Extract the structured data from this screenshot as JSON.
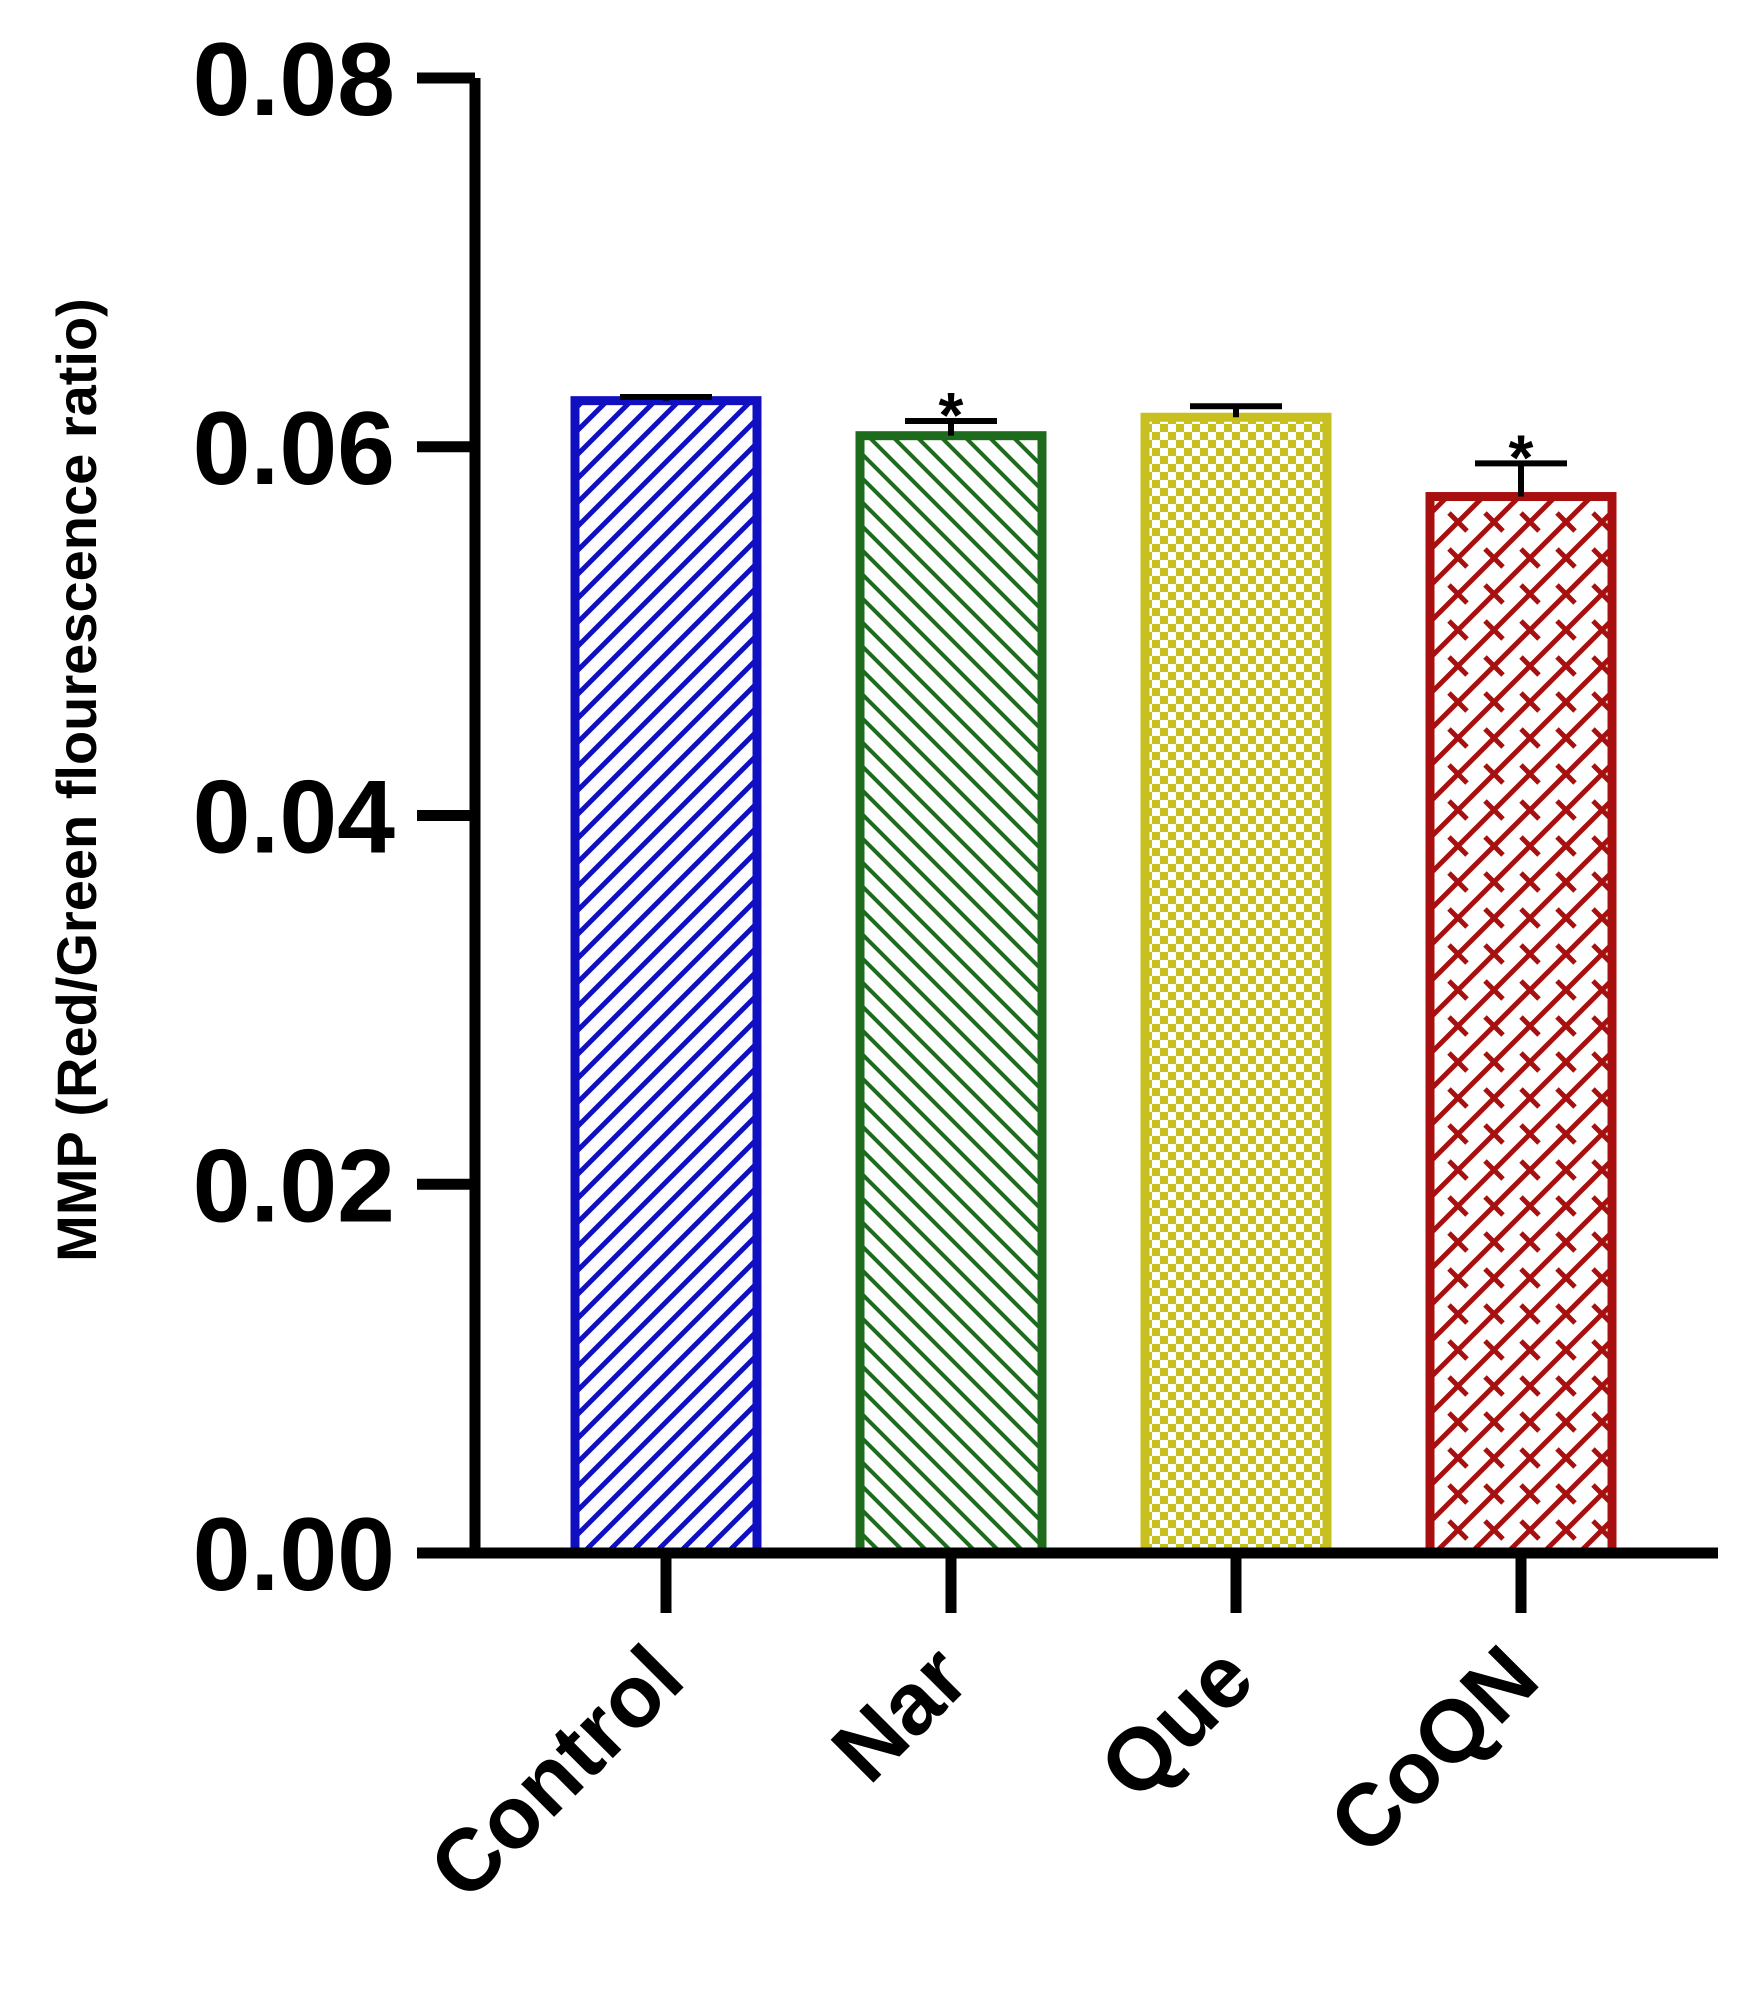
{
  "chart_data": {
    "type": "bar",
    "title": "",
    "xlabel": "",
    "ylabel": "MMP (Red/Green flourescence ratio)",
    "ylim": [
      0,
      0.08
    ],
    "yticks": [
      "0.00",
      "0.02",
      "0.04",
      "0.06",
      "0.08"
    ],
    "ytick_values": [
      0,
      0.02,
      0.04,
      0.06,
      0.08
    ],
    "grid": false,
    "legend": "none",
    "categories": [
      "Control",
      "Nar",
      "Que",
      "CoQN"
    ],
    "values": [
      0.0625,
      0.0606,
      0.0616,
      0.0573
    ],
    "error": [
      0.0002,
      0.0008,
      0.0006,
      0.0018
    ],
    "significance": [
      "",
      "*",
      "",
      "*"
    ],
    "colors": [
      "#1010c0",
      "#1e6b1e",
      "#c8c020",
      "#a81010"
    ],
    "patterns": [
      "diagonal-up",
      "diagonal-down",
      "checker",
      "crosshatch-brick"
    ]
  }
}
